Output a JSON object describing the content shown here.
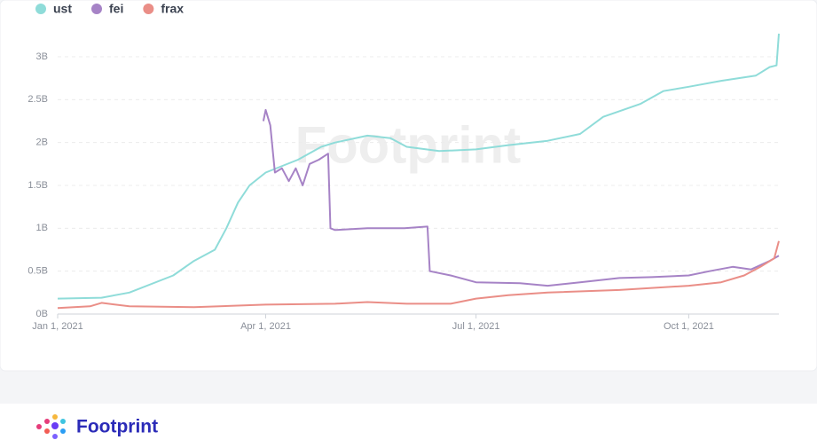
{
  "chart_data": {
    "type": "line",
    "watermark": "Footprint",
    "footer_logo": "Footprint",
    "grid": true,
    "legend_position": "top-left",
    "xlim": [
      "2021-01-01",
      "2021-11-09"
    ],
    "xticks": [
      {
        "value": "2021-01-01",
        "label": "Jan 1, 2021"
      },
      {
        "value": "2021-04-01",
        "label": "Apr 1, 2021"
      },
      {
        "value": "2021-07-01",
        "label": "Jul 1, 2021"
      },
      {
        "value": "2021-10-01",
        "label": "Oct 1, 2021"
      }
    ],
    "ylim": [
      0,
      3.3
    ],
    "yticks": [
      {
        "value": 0,
        "label": "0B"
      },
      {
        "value": 0.5,
        "label": "0.5B"
      },
      {
        "value": 1,
        "label": "1B"
      },
      {
        "value": 1.5,
        "label": "1.5B"
      },
      {
        "value": 2,
        "label": "2B"
      },
      {
        "value": 2.5,
        "label": "2.5B"
      },
      {
        "value": 3,
        "label": "3B"
      }
    ],
    "series": [
      {
        "name": "ust",
        "color": "#8fdcd9",
        "x": [
          "2021-01-01",
          "2021-01-20",
          "2021-02-01",
          "2021-02-20",
          "2021-03-01",
          "2021-03-10",
          "2021-03-15",
          "2021-03-20",
          "2021-03-25",
          "2021-04-01",
          "2021-04-15",
          "2021-04-25",
          "2021-05-01",
          "2021-05-15",
          "2021-05-25",
          "2021-06-01",
          "2021-06-15",
          "2021-07-01",
          "2021-07-15",
          "2021-08-01",
          "2021-08-15",
          "2021-08-25",
          "2021-09-10",
          "2021-09-20",
          "2021-10-01",
          "2021-10-15",
          "2021-10-30",
          "2021-11-05",
          "2021-11-08",
          "2021-11-09"
        ],
        "values": [
          0.18,
          0.19,
          0.25,
          0.45,
          0.62,
          0.75,
          1.0,
          1.3,
          1.5,
          1.65,
          1.8,
          1.95,
          2.0,
          2.08,
          2.05,
          1.95,
          1.9,
          1.92,
          1.97,
          2.02,
          2.1,
          2.3,
          2.45,
          2.6,
          2.65,
          2.72,
          2.78,
          2.88,
          2.9,
          3.27
        ]
      },
      {
        "name": "fei",
        "color": "#a683c6",
        "x": [
          "2021-03-31",
          "2021-04-01",
          "2021-04-03",
          "2021-04-05",
          "2021-04-08",
          "2021-04-11",
          "2021-04-14",
          "2021-04-17",
          "2021-04-20",
          "2021-04-24",
          "2021-04-28",
          "2021-04-29",
          "2021-05-01",
          "2021-05-15",
          "2021-05-31",
          "2021-06-10",
          "2021-06-11",
          "2021-06-20",
          "2021-07-01",
          "2021-07-20",
          "2021-08-01",
          "2021-08-15",
          "2021-09-01",
          "2021-09-15",
          "2021-10-01",
          "2021-10-10",
          "2021-10-20",
          "2021-10-28",
          "2021-11-05",
          "2021-11-09"
        ],
        "values": [
          2.25,
          2.38,
          2.2,
          1.65,
          1.7,
          1.55,
          1.7,
          1.5,
          1.75,
          1.8,
          1.87,
          1.0,
          0.98,
          1.0,
          1.0,
          1.02,
          0.5,
          0.45,
          0.37,
          0.36,
          0.33,
          0.37,
          0.42,
          0.43,
          0.45,
          0.5,
          0.55,
          0.52,
          0.62,
          0.68
        ]
      },
      {
        "name": "frax",
        "color": "#ea8e87",
        "x": [
          "2021-01-01",
          "2021-01-15",
          "2021-01-20",
          "2021-02-01",
          "2021-03-01",
          "2021-04-01",
          "2021-05-01",
          "2021-05-15",
          "2021-06-01",
          "2021-06-20",
          "2021-07-01",
          "2021-07-15",
          "2021-08-01",
          "2021-09-01",
          "2021-10-01",
          "2021-10-15",
          "2021-10-25",
          "2021-11-01",
          "2021-11-07",
          "2021-11-09"
        ],
        "values": [
          0.07,
          0.09,
          0.13,
          0.09,
          0.08,
          0.11,
          0.12,
          0.14,
          0.12,
          0.12,
          0.18,
          0.22,
          0.25,
          0.28,
          0.33,
          0.37,
          0.45,
          0.55,
          0.65,
          0.85
        ]
      }
    ]
  }
}
